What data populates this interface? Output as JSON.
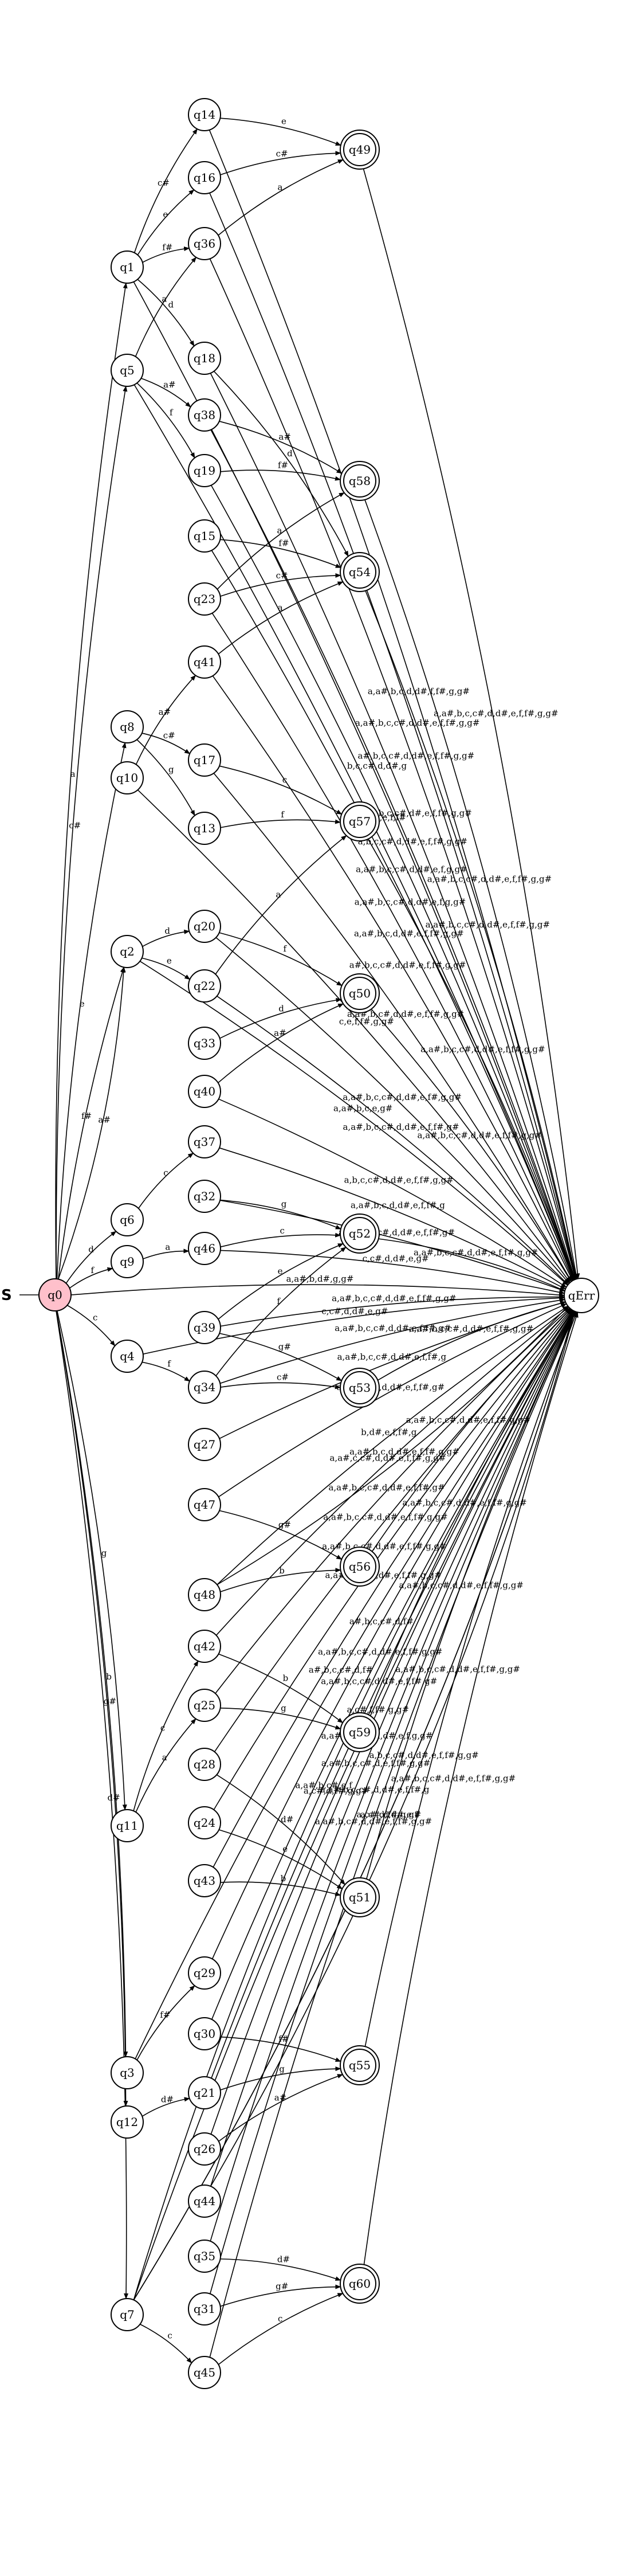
{
  "start_marker": "S",
  "states": [
    {
      "id": "q0",
      "label": "q0",
      "kind": "start"
    },
    {
      "id": "q1",
      "label": "q1"
    },
    {
      "id": "q5",
      "label": "q5"
    },
    {
      "id": "q8",
      "label": "q8"
    },
    {
      "id": "q10",
      "label": "q10"
    },
    {
      "id": "q2",
      "label": "q2"
    },
    {
      "id": "q6",
      "label": "q6"
    },
    {
      "id": "q9",
      "label": "q9"
    },
    {
      "id": "q4",
      "label": "q4"
    },
    {
      "id": "q11",
      "label": "q11"
    },
    {
      "id": "q3",
      "label": "q3"
    },
    {
      "id": "q12",
      "label": "q12"
    },
    {
      "id": "q7",
      "label": "q7"
    },
    {
      "id": "q14",
      "label": "q14"
    },
    {
      "id": "q16",
      "label": "q16"
    },
    {
      "id": "q36",
      "label": "q36"
    },
    {
      "id": "q18",
      "label": "q18"
    },
    {
      "id": "q38",
      "label": "q38"
    },
    {
      "id": "q19",
      "label": "q19"
    },
    {
      "id": "q15",
      "label": "q15"
    },
    {
      "id": "q23",
      "label": "q23"
    },
    {
      "id": "q41",
      "label": "q41"
    },
    {
      "id": "q17",
      "label": "q17"
    },
    {
      "id": "q13",
      "label": "q13"
    },
    {
      "id": "q20",
      "label": "q20"
    },
    {
      "id": "q22",
      "label": "q22"
    },
    {
      "id": "q33",
      "label": "q33"
    },
    {
      "id": "q40",
      "label": "q40"
    },
    {
      "id": "q37",
      "label": "q37"
    },
    {
      "id": "q32",
      "label": "q32"
    },
    {
      "id": "q46",
      "label": "q46"
    },
    {
      "id": "q39",
      "label": "q39"
    },
    {
      "id": "q34",
      "label": "q34"
    },
    {
      "id": "q27",
      "label": "q27"
    },
    {
      "id": "q47",
      "label": "q47"
    },
    {
      "id": "q48",
      "label": "q48"
    },
    {
      "id": "q42",
      "label": "q42"
    },
    {
      "id": "q25",
      "label": "q25"
    },
    {
      "id": "q28",
      "label": "q28"
    },
    {
      "id": "q24",
      "label": "q24"
    },
    {
      "id": "q43",
      "label": "q43"
    },
    {
      "id": "q29",
      "label": "q29"
    },
    {
      "id": "q30",
      "label": "q30"
    },
    {
      "id": "q21",
      "label": "q21"
    },
    {
      "id": "q26",
      "label": "q26"
    },
    {
      "id": "q44",
      "label": "q44"
    },
    {
      "id": "q35",
      "label": "q35"
    },
    {
      "id": "q31",
      "label": "q31"
    },
    {
      "id": "q45",
      "label": "q45"
    },
    {
      "id": "q49",
      "label": "q49",
      "kind": "accept"
    },
    {
      "id": "q58",
      "label": "q58",
      "kind": "accept"
    },
    {
      "id": "q54",
      "label": "q54",
      "kind": "accept"
    },
    {
      "id": "q57",
      "label": "q57",
      "kind": "accept"
    },
    {
      "id": "q50",
      "label": "q50",
      "kind": "accept"
    },
    {
      "id": "q52",
      "label": "q52",
      "kind": "accept"
    },
    {
      "id": "q53",
      "label": "q53",
      "kind": "accept"
    },
    {
      "id": "q56",
      "label": "q56",
      "kind": "accept"
    },
    {
      "id": "q59",
      "label": "q59",
      "kind": "accept"
    },
    {
      "id": "q51",
      "label": "q51",
      "kind": "accept"
    },
    {
      "id": "q55",
      "label": "q55",
      "kind": "accept"
    },
    {
      "id": "q60",
      "label": "q60",
      "kind": "accept"
    },
    {
      "id": "qErr",
      "label": "qErr"
    }
  ],
  "transitions": [
    {
      "from": "q0",
      "to": "q1",
      "label": "a"
    },
    {
      "from": "q0",
      "to": "q5",
      "label": "c#"
    },
    {
      "from": "q0",
      "to": "q8",
      "label": "e"
    },
    {
      "from": "q0",
      "to": "q2",
      "label": "f#"
    },
    {
      "from": "q0",
      "to": "q2",
      "label": "a#"
    },
    {
      "from": "q0",
      "to": "q6",
      "label": "d"
    },
    {
      "from": "q0",
      "to": "q9",
      "label": "f"
    },
    {
      "from": "q0",
      "to": "q4",
      "label": "c"
    },
    {
      "from": "q0",
      "to": "q11",
      "label": "g"
    },
    {
      "from": "q0",
      "to": "q3",
      "label": "b"
    },
    {
      "from": "q0",
      "to": "q12",
      "label": "g#"
    },
    {
      "from": "q0",
      "to": "q7",
      "label": "d#"
    },
    {
      "from": "q0",
      "to": "qErr",
      "label": "a,a#,b,d#,g,g#"
    },
    {
      "from": "q1",
      "to": "q14",
      "label": "c#"
    },
    {
      "from": "q1",
      "to": "q16",
      "label": "e"
    },
    {
      "from": "q1",
      "to": "q36",
      "label": "f#"
    },
    {
      "from": "q1",
      "to": "q18",
      "label": "d"
    },
    {
      "from": "q1",
      "to": "qErr",
      "label": "b,c,c#,d,d#,g"
    },
    {
      "from": "q5",
      "to": "q36",
      "label": "a"
    },
    {
      "from": "q5",
      "to": "q38",
      "label": "a#"
    },
    {
      "from": "q5",
      "to": "q19",
      "label": "f"
    },
    {
      "from": "q5",
      "to": "qErr",
      "label": "a#,d,d#,e,f,f#"
    },
    {
      "from": "q8",
      "to": "q17",
      "label": "c#"
    },
    {
      "from": "q8",
      "to": "q13",
      "label": "g"
    },
    {
      "from": "q10",
      "to": "q41",
      "label": "a#"
    },
    {
      "from": "q10",
      "to": "qErr",
      "label": "c,e,f,f#,g,g#"
    },
    {
      "from": "q2",
      "to": "q20",
      "label": "d"
    },
    {
      "from": "q2",
      "to": "q22",
      "label": "e"
    },
    {
      "from": "q2",
      "to": "qErr",
      "label": "a,a#,b,c,e,g#"
    },
    {
      "from": "q6",
      "to": "q37",
      "label": "c"
    },
    {
      "from": "q9",
      "to": "q46",
      "label": "a"
    },
    {
      "from": "q4",
      "to": "q34",
      "label": "f"
    },
    {
      "from": "q4",
      "to": "qErr",
      "label": "c,c#,d,d#,e,g#"
    },
    {
      "from": "q11",
      "to": "q42",
      "label": "c"
    },
    {
      "from": "q11",
      "to": "q25",
      "label": "a"
    },
    {
      "from": "q3",
      "to": "q29",
      "label": "f#"
    },
    {
      "from": "q3",
      "to": "qErr",
      "label": "a#,b,c,c#,d,f#"
    },
    {
      "from": "q12",
      "to": "q21",
      "label": "d#"
    },
    {
      "from": "q7",
      "to": "q45",
      "label": "c"
    },
    {
      "from": "q7",
      "to": "qErr",
      "label": "a,c#,d,f#,g,g#"
    },
    {
      "from": "q7",
      "to": "qErr",
      "label": "a,c#,d,d#,e,f"
    },
    {
      "from": "q14",
      "to": "q49",
      "label": "e"
    },
    {
      "from": "q14",
      "to": "qErr",
      "label": "a,a#,b,c,d,d#,f,f#,g,g#"
    },
    {
      "from": "q16",
      "to": "q49",
      "label": "c#"
    },
    {
      "from": "q16",
      "to": "qErr",
      "label": "a,a#,b,c,c#,d,d#,e,f,f#,g,g#"
    },
    {
      "from": "q36",
      "to": "q49",
      "label": "a"
    },
    {
      "from": "q36",
      "to": "qErr",
      "label": "a#,b,c,c#,d,d#,e,f,f#,g,g#"
    },
    {
      "from": "q49",
      "to": "qErr",
      "label": "a,a#,b,c,c#,d,d#,e,f,f#,g,g#"
    },
    {
      "from": "q18",
      "to": "q54",
      "label": "d"
    },
    {
      "from": "q18",
      "to": "qErr",
      "label": "a,a#,b,c,c#,d#,e,f,f#,g,g#"
    },
    {
      "from": "q38",
      "to": "q58",
      "label": "a#"
    },
    {
      "from": "q38",
      "to": "qErr",
      "label": "a,b,c,c#,d,d#,e,f,f#,g,g#"
    },
    {
      "from": "q19",
      "to": "q58",
      "label": "f#"
    },
    {
      "from": "q19",
      "to": "qErr",
      "label": "a,a#,b,c,c#,d,d#,e,f,g,g#"
    },
    {
      "from": "q58",
      "to": "qErr",
      "label": "a,a#,b,c,c#,d,d#,e,f,f#,g,g#"
    },
    {
      "from": "q15",
      "to": "q54",
      "label": "f#"
    },
    {
      "from": "q15",
      "to": "qErr",
      "label": "a,a#,b,c,c#,d,d#,e,f,g,g#"
    },
    {
      "from": "q23",
      "to": "q54",
      "label": "c#"
    },
    {
      "from": "q23",
      "to": "q58",
      "label": "a"
    },
    {
      "from": "q23",
      "to": "qErr",
      "label": "a,a#,b,c,d,d#,e,f,f#,g,g#"
    },
    {
      "from": "q54",
      "to": "qErr",
      "label": "a,a#,b,c,c#,d,d#,e,f,f#,g,g#"
    },
    {
      "from": "q41",
      "to": "q54",
      "label": "a"
    },
    {
      "from": "q41",
      "to": "qErr",
      "label": "a#,b,c,c#,d,d#,e,f,f#,g,g#"
    },
    {
      "from": "q17",
      "to": "q57",
      "label": "c"
    },
    {
      "from": "q17",
      "to": "qErr",
      "label": "a,a#,b,c#,d,d#,e,f,f#,g,g#"
    },
    {
      "from": "q13",
      "to": "q57",
      "label": "f"
    },
    {
      "from": "q57",
      "to": "qErr",
      "label": "a,a#,b,c,c#,d,d#,e,f,f#,g,g#"
    },
    {
      "from": "q20",
      "to": "q50",
      "label": "f"
    },
    {
      "from": "q20",
      "to": "qErr",
      "label": "a,a#,b,c,c#,d,d#,e,f#,g,g#"
    },
    {
      "from": "q22",
      "to": "q57",
      "label": "a"
    },
    {
      "from": "q22",
      "to": "qErr",
      "label": "a,a#,b,c,c#,d,d#,e,f,f#,g#"
    },
    {
      "from": "q33",
      "to": "q50",
      "label": "d"
    },
    {
      "from": "q40",
      "to": "q50",
      "label": "a#"
    },
    {
      "from": "q40",
      "to": "qErr",
      "label": "a,b,c,c#,d,d#,e,f,f#,g,g#"
    },
    {
      "from": "q50",
      "to": "qErr",
      "label": "a,a#,b,c,c#,d,d#,e,f,f#,g,g#"
    },
    {
      "from": "q37",
      "to": "qErr",
      "label": "a,a#,b,c,d,d#,e,f,f#,g"
    },
    {
      "from": "q32",
      "to": "q52",
      "label": "g"
    },
    {
      "from": "q32",
      "to": "qErr",
      "label": "a,a#,b,c,c#,d,d#,e,f,f#,g#"
    },
    {
      "from": "q46",
      "to": "q52",
      "label": "c"
    },
    {
      "from": "q46",
      "to": "qErr",
      "label": "c,c#,d,d#,e,g#"
    },
    {
      "from": "q52",
      "to": "qErr",
      "label": "a,a#,b,c,c#,d,d#,e,f,f#,g,g#"
    },
    {
      "from": "q39",
      "to": "q53",
      "label": "g#"
    },
    {
      "from": "q39",
      "to": "q52",
      "label": "e"
    },
    {
      "from": "q39",
      "to": "qErr",
      "label": "a,a#,b,c,c#,d,d#,e,f,f#,g,g#"
    },
    {
      "from": "q34",
      "to": "q52",
      "label": "f"
    },
    {
      "from": "q34",
      "to": "q53",
      "label": "c#"
    },
    {
      "from": "q34",
      "to": "qErr",
      "label": "a,a#,b,c,c#,d,d#,e,f,f#,g#"
    },
    {
      "from": "q53",
      "to": "qErr",
      "label": "a,a#,b,c,c#,d,d#,e,f,f#,g,g#"
    },
    {
      "from": "q27",
      "to": "qErr",
      "label": "a,a#,b,c,c#,d,d#,e,f,f#,g"
    },
    {
      "from": "q47",
      "to": "q56",
      "label": "g#"
    },
    {
      "from": "q47",
      "to": "qErr",
      "label": "a,a#,c,c#,d,d#,e,f,f#,g#"
    },
    {
      "from": "q48",
      "to": "q56",
      "label": "b"
    },
    {
      "from": "q48",
      "to": "qErr",
      "label": "b,d#,e,f,f#,g"
    },
    {
      "from": "q56",
      "to": "qErr",
      "label": "a,a#,b,c,c#,d,d#,e,f,f#,g,g#"
    },
    {
      "from": "q48",
      "to": "qErr",
      "label": "a,a#,b,c,d,d#,e,f,f#,g,g#"
    },
    {
      "from": "q42",
      "to": "q59",
      "label": "b"
    },
    {
      "from": "q42",
      "to": "qErr",
      "label": "a,a#,c,c#,d,d#,e,f,f#,g,g#"
    },
    {
      "from": "q25",
      "to": "q59",
      "label": "g"
    },
    {
      "from": "q25",
      "to": "qErr",
      "label": "a,a#,b,c,c#,d,d#,e,f,f#,g#"
    },
    {
      "from": "q59",
      "to": "qErr",
      "label": "a,a#,b,c,c#,d,d#,e,f,f#,g,g#"
    },
    {
      "from": "q28",
      "to": "q51",
      "label": "d#"
    },
    {
      "from": "q28",
      "to": "qErr",
      "label": "a,a#,b,c,c#,d,d#,e,f,f#,g,g#"
    },
    {
      "from": "q24",
      "to": "q51",
      "label": "e"
    },
    {
      "from": "q24",
      "to": "qErr",
      "label": "a,a#,b,c,c#,d,d#,e,f,f#,g,g#"
    },
    {
      "from": "q43",
      "to": "q51",
      "label": "b"
    },
    {
      "from": "q43",
      "to": "qErr",
      "label": "a,a#,c,c#,d,d#,e,f,f#,g,g#"
    },
    {
      "from": "q51",
      "to": "qErr",
      "label": "a,a#,b,c,c#,d,d#,e,f,f#,g,g#"
    },
    {
      "from": "q29",
      "to": "qErr",
      "label": "a#,b,c,c#,d,f#"
    },
    {
      "from": "q30",
      "to": "q55",
      "label": "f#"
    },
    {
      "from": "q30",
      "to": "qErr",
      "label": "a,a#,b,c,c#,d,d#,e,f,f#,g,g#"
    },
    {
      "from": "q21",
      "to": "q55",
      "label": "g"
    },
    {
      "from": "q21",
      "to": "qErr",
      "label": "a,a#,b,c,c#,d,d#,e,f,f#,g#"
    },
    {
      "from": "q26",
      "to": "q55",
      "label": "a#"
    },
    {
      "from": "q26",
      "to": "qErr",
      "label": "a,c#,f,f#,g,g#"
    },
    {
      "from": "q55",
      "to": "qErr",
      "label": "a,a#,b,c,c#,d,d#,e,f,f#,g,g#"
    },
    {
      "from": "q44",
      "to": "qErr",
      "label": "a,a#,b,c,c#,d,d#,e,f,g,g#"
    },
    {
      "from": "q44",
      "to": "qErr",
      "label": "a,b,c,c#,d,d#,e,f,f#,g,g#"
    },
    {
      "from": "q35",
      "to": "q60",
      "label": "d#"
    },
    {
      "from": "q35",
      "to": "qErr",
      "label": "a,a#,b,c,c#,d,e,f,f#,g,g#"
    },
    {
      "from": "q31",
      "to": "q60",
      "label": "g#"
    },
    {
      "from": "q31",
      "to": "qErr",
      "label": "a,a#,b,c,c#,d,d#,e,f,f#,g"
    },
    {
      "from": "q45",
      "to": "q60",
      "label": "c"
    },
    {
      "from": "q45",
      "to": "qErr",
      "label": "a,a#,b,c#,d,d#,e,f,f#,g,g#"
    },
    {
      "from": "q60",
      "to": "qErr",
      "label": "a,a#,b,c,c#,d,d#,e,f,f#,g,g#"
    },
    {
      "from": "q7",
      "to": "qErr",
      "label": "a,a#,b,c#,e,f"
    },
    {
      "from": "q7",
      "to": "qErr",
      "label": "a,c#,d,f#,g,g#"
    }
  ]
}
